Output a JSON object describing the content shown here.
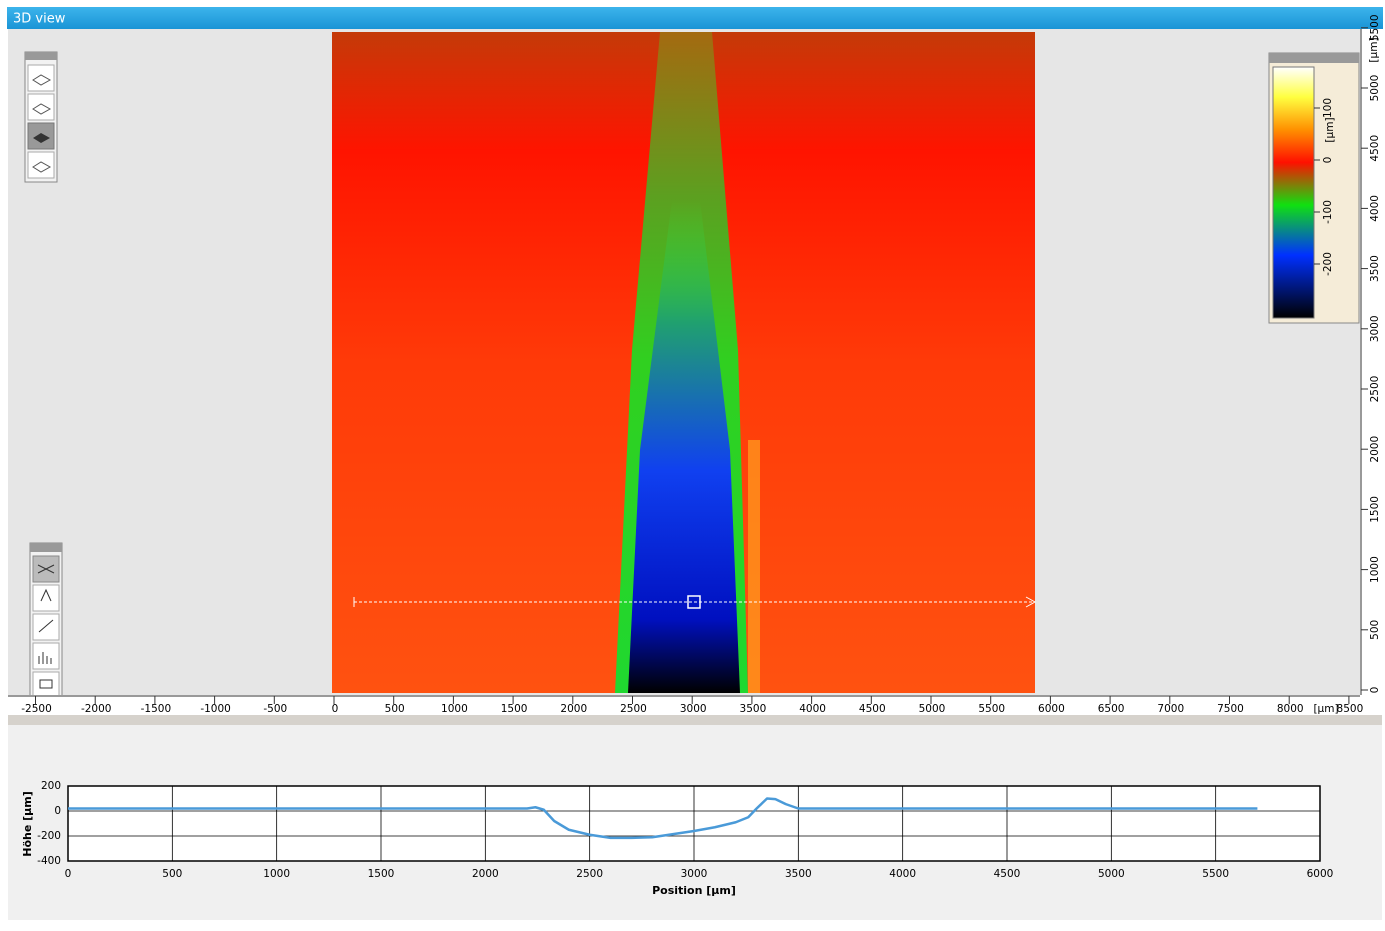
{
  "window": {
    "title": "3D view"
  },
  "ruler_x": {
    "ticks": [
      -2500,
      -2000,
      -1500,
      -1000,
      -500,
      0,
      500,
      1000,
      1500,
      2000,
      2500,
      3000,
      3500,
      4000,
      4500,
      5000,
      5500,
      6000,
      6500,
      7000,
      7500,
      8000,
      8500
    ],
    "unit": "[µm]"
  },
  "ruler_y": {
    "ticks": [
      0,
      500,
      1000,
      1500,
      2000,
      2500,
      3000,
      3500,
      4000,
      4500,
      5000,
      5500
    ],
    "unit": "[µm]"
  },
  "colorbar": {
    "ticks": [
      100,
      0,
      -100,
      -200
    ],
    "unit": "[µm]"
  },
  "chart_data": {
    "type": "line",
    "x": [
      0,
      500,
      1000,
      1500,
      2000,
      2200,
      2240,
      2280,
      2330,
      2400,
      2500,
      2600,
      2700,
      2800,
      2900,
      3000,
      3100,
      3200,
      3260,
      3300,
      3350,
      3390,
      3440,
      3500,
      4000,
      4500,
      5000,
      5500,
      5700
    ],
    "series": [
      {
        "name": "Höhe",
        "color": "#4a9ad8",
        "values": [
          20,
          20,
          20,
          20,
          20,
          20,
          30,
          10,
          -80,
          -150,
          -190,
          -215,
          -215,
          -210,
          -185,
          -160,
          -130,
          -90,
          -50,
          20,
          100,
          95,
          55,
          20,
          20,
          20,
          20,
          20,
          20
        ]
      }
    ],
    "xlim": [
      0,
      6000
    ],
    "xticks": [
      0,
      500,
      1000,
      1500,
      2000,
      2500,
      3000,
      3500,
      4000,
      4500,
      5000,
      5500,
      6000
    ],
    "ylim": [
      -400,
      200
    ],
    "yticks": [
      -400,
      -200,
      0,
      200
    ],
    "xlabel": "Position [µm]",
    "ylabel": "Höhe [µm]",
    "grid": true
  }
}
